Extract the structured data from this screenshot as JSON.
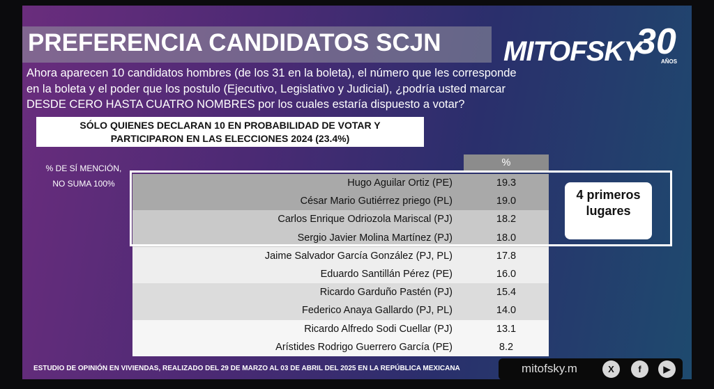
{
  "header": {
    "title": "PREFERENCIA CANDIDATOS SCJN",
    "logo": "MITOFSKY",
    "logo_number": "30",
    "logo_years": "AÑOS"
  },
  "question": [
    "Ahora aparecen 10 candidatos hombres (de los 31 en la boleta), el número que les corresponde",
    "en la boleta y el poder que los postulo (Ejecutivo, Legislativo y Judicial), ¿podría usted marcar",
    "DESDE CERO HASTA CUATRO NOMBRES por los cuales estaría dispuesto a votar?"
  ],
  "subheader": [
    "SÓLO QUIENES  DECLARAN 10 EN PROBABILIDAD DE VOTAR Y",
    "PARTICIPARON EN LAS ELECCIONES 2024  (23.4%)"
  ],
  "note": [
    "% DE SÍ MENCIÓN,",
    "NO SUMA 100%"
  ],
  "table": {
    "header": "%",
    "rows": [
      [
        "Hugo Aguilar Ortiz (PE)",
        "19.3"
      ],
      [
        "César Mario Gutiérrez priego (PL)",
        "19.0"
      ],
      [
        "Carlos Enrique Odriozola Mariscal (PJ)",
        "18.2"
      ],
      [
        "Sergio Javier Molina Martínez (PJ)",
        "18.0"
      ],
      [
        "Jaime Salvador García González (PJ, PL)",
        "17.8"
      ],
      [
        "Eduardo Santillán Pérez (PE)",
        "16.0"
      ],
      [
        "Ricardo Garduño Pastén (PJ)",
        "15.4"
      ],
      [
        "Federico Anaya Gallardo (PJ, PL)",
        "14.0"
      ],
      [
        "Ricardo Alfredo Sodi Cuellar (PJ)",
        "13.1"
      ],
      [
        "Arístides Rodrigo Guerrero García (PE)",
        "8.2"
      ]
    ]
  },
  "callout": [
    "4 primeros",
    "lugares"
  ],
  "footer": {
    "text": "ESTUDIO DE OPINIÓN EN VIVIENDAS, REALIZADO DEL 29 DE MARZO AL 03 DE ABRIL DEL 2025 EN LA REPÚBLICA MEXICANA",
    "url": "mitofsky.m"
  }
}
